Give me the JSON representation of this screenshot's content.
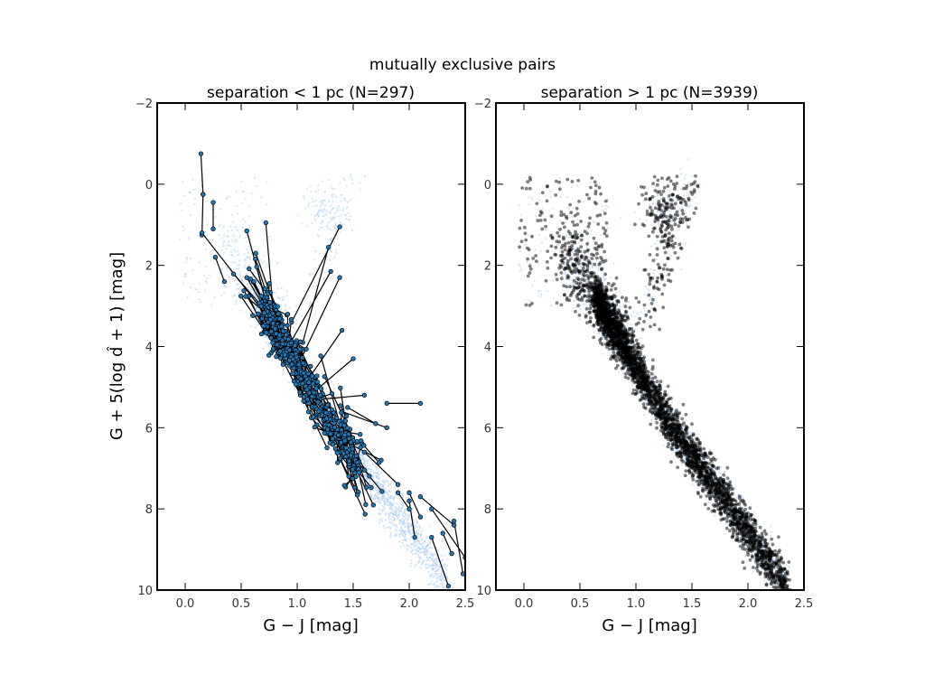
{
  "figure": {
    "suptitle": "mutually exclusive pairs"
  },
  "chart_data": [
    {
      "type": "scatter",
      "title": "separation < 1 pc (N=297)",
      "xlabel": "G − J [mag]",
      "ylabel": "G + 5(log d̂ + 1) [mag]",
      "xlim": [
        -0.25,
        2.5
      ],
      "ylim": [
        10,
        -2
      ],
      "y_inverted": true,
      "x_ticks": [
        "0.0",
        "0.5",
        "1.0",
        "1.5",
        "2.0",
        "2.5"
      ],
      "y_ticks": [
        "−2",
        "0",
        "2",
        "4",
        "6",
        "8",
        "10"
      ],
      "grid": false,
      "background_color": "#aed0f0",
      "marker_color": "#1f77b4",
      "line_color": "#000000",
      "pairs": [
        [
          [
            0.14,
            -0.75
          ],
          [
            0.16,
            0.25
          ]
        ],
        [
          [
            0.16,
            0.25
          ],
          [
            0.15,
            1.25
          ]
        ],
        [
          [
            0.25,
            0.45
          ],
          [
            0.25,
            1.1
          ]
        ],
        [
          [
            0.27,
            1.8
          ],
          [
            0.35,
            2.4
          ]
        ],
        [
          [
            0.55,
            1.15
          ],
          [
            0.75,
            3.2
          ]
        ],
        [
          [
            0.72,
            0.95
          ],
          [
            0.8,
            3.6
          ]
        ],
        [
          [
            0.63,
            1.7
          ],
          [
            0.9,
            3.8
          ]
        ],
        [
          [
            1.38,
            1.05
          ],
          [
            0.95,
            3.4
          ]
        ],
        [
          [
            1.28,
            1.55
          ],
          [
            1.05,
            3.9
          ]
        ],
        [
          [
            1.3,
            2.15
          ],
          [
            0.9,
            4.1
          ]
        ],
        [
          [
            1.38,
            2.3
          ],
          [
            1.0,
            4.5
          ]
        ],
        [
          [
            1.4,
            3.6
          ],
          [
            1.1,
            4.8
          ]
        ],
        [
          [
            1.5,
            4.3
          ],
          [
            1.2,
            5.0
          ]
        ],
        [
          [
            1.6,
            5.2
          ],
          [
            1.2,
            5.3
          ]
        ],
        [
          [
            2.1,
            5.4
          ],
          [
            1.8,
            5.4
          ]
        ],
        [
          [
            1.8,
            6.0
          ],
          [
            1.4,
            5.6
          ]
        ],
        [
          [
            0.15,
            1.2
          ],
          [
            0.8,
            3.5
          ]
        ],
        [
          [
            0.55,
            2.3
          ],
          [
            0.95,
            4.2
          ]
        ],
        [
          [
            1.7,
            5.9
          ],
          [
            1.45,
            5.5
          ]
        ],
        [
          [
            2.0,
            7.6
          ],
          [
            2.1,
            8.2
          ]
        ],
        [
          [
            2.0,
            7.8
          ],
          [
            2.05,
            8.7
          ]
        ],
        [
          [
            2.1,
            7.7
          ],
          [
            2.4,
            8.4
          ]
        ],
        [
          [
            2.2,
            8.0
          ],
          [
            2.5,
            9.2
          ]
        ],
        [
          [
            2.4,
            8.3
          ],
          [
            2.48,
            9.6
          ]
        ],
        [
          [
            2.2,
            8.7
          ],
          [
            2.35,
            9.9
          ]
        ],
        [
          [
            1.9,
            7.6
          ],
          [
            2.0,
            8.0
          ]
        ],
        [
          [
            1.4,
            6.3
          ],
          [
            1.75,
            6.8
          ]
        ],
        [
          [
            1.6,
            6.6
          ],
          [
            1.9,
            7.4
          ]
        ],
        [
          [
            2.3,
            8.6
          ],
          [
            2.38,
            9.1
          ]
        ]
      ]
    },
    {
      "type": "scatter",
      "title": "separation > 1 pc (N=3939)",
      "xlabel": "G − J [mag]",
      "xlim": [
        -0.25,
        2.5
      ],
      "ylim": [
        10,
        -2
      ],
      "y_inverted": true,
      "x_ticks": [
        "0.0",
        "0.5",
        "1.0",
        "1.5",
        "2.0",
        "2.5"
      ],
      "grid": false,
      "background_color": "#aed0f0",
      "marker_color": "#000000"
    }
  ]
}
